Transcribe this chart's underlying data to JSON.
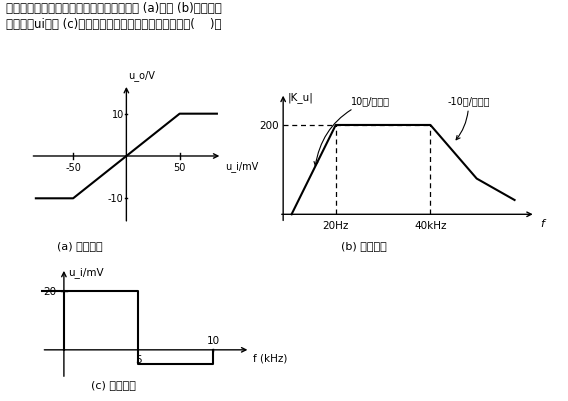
{
  "bg_color": "#ffffff",
  "title_line1": "放大器的传递特性曲线及频率特性分别如图 (a)和图 (b)所示。若",
  "title_line2": "方波信号ui如图 (c)作为放大器的输入信号，则输出波形(    )。",
  "fig_a_caption": "(a) 传递特性",
  "fig_b_caption": "(b) 幅频特性",
  "fig_c_caption": "(c) 方波信号",
  "fig_a_ylabel": "u_o/V",
  "fig_a_xlabel": "u_i/mV",
  "fig_b_ylabel": "|K_u|",
  "fig_b_xlabel": "f",
  "fig_c_ylabel": "u_i/mV",
  "fig_c_xlabel": "f (kHz)",
  "ann_rise": "10倍/十倍频",
  "ann_fall": "-10倍/十倍频"
}
